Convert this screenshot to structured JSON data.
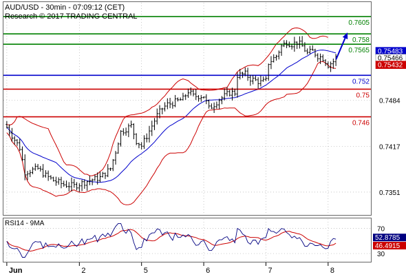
{
  "header": {
    "title": "AUD/USD - 30min - 07:09:12 (CET)",
    "subtitle": "Research © 2017 TRADING CENTRAL"
  },
  "colors": {
    "price": "#000000",
    "bollinger": "#cc0000",
    "moving_average": "#0000cc",
    "resistance": "#008000",
    "pivot": "#0000cc",
    "support": "#cc0000",
    "arrow": "#0000cc",
    "rsi": "#000080",
    "rsi_ma": "#cc0000",
    "grid": "#b0b0b0"
  },
  "chart_data": [
    {
      "type": "candlestick",
      "series_label": "AUD/USD",
      "ylim": [
        0.732,
        0.7625
      ],
      "y_ticks": [
        0.7351,
        0.7417,
        0.7484
      ],
      "x_tick_labels": [
        "Jun",
        "2",
        "5",
        "6",
        "7",
        "8"
      ],
      "x_tick_index": [
        0,
        28,
        52,
        76,
        100,
        124
      ],
      "grid": "dotted",
      "levels": [
        {
          "label": "0.7605",
          "value": 0.7605,
          "kind": "resistance"
        },
        {
          "label": "0.758",
          "value": 0.758,
          "kind": "resistance"
        },
        {
          "label": "0.7565",
          "value": 0.7565,
          "kind": "resistance"
        },
        {
          "label": "0.752",
          "value": 0.752,
          "kind": "pivot"
        },
        {
          "label": "0.75",
          "value": 0.75,
          "kind": "support"
        },
        {
          "label": "0.746",
          "value": 0.746,
          "kind": "support"
        }
      ],
      "price_tags": [
        {
          "label": "0.75483",
          "value": 0.75483
        },
        {
          "label": "0.75466",
          "value": 0.75466
        },
        {
          "label": "0.75432",
          "value": 0.75432
        }
      ],
      "arrow": {
        "from_value": 0.7543,
        "to_value": 0.758
      },
      "keypoints": [
        [
          0,
          0.7445
        ],
        [
          5,
          0.7415
        ],
        [
          7,
          0.738
        ],
        [
          12,
          0.7385
        ],
        [
          15,
          0.7375
        ],
        [
          18,
          0.7368
        ],
        [
          22,
          0.7362
        ],
        [
          26,
          0.736
        ],
        [
          32,
          0.7368
        ],
        [
          36,
          0.7372
        ],
        [
          40,
          0.7385
        ],
        [
          42,
          0.741
        ],
        [
          44,
          0.7438
        ],
        [
          48,
          0.7447
        ],
        [
          50,
          0.7425
        ],
        [
          52,
          0.7418
        ],
        [
          54,
          0.7432
        ],
        [
          58,
          0.7462
        ],
        [
          60,
          0.7472
        ],
        [
          62,
          0.7478
        ],
        [
          64,
          0.748
        ],
        [
          68,
          0.7486
        ],
        [
          70,
          0.7497
        ],
        [
          72,
          0.749
        ],
        [
          76,
          0.749
        ],
        [
          78,
          0.7472
        ],
        [
          80,
          0.7478
        ],
        [
          82,
          0.7485
        ],
        [
          86,
          0.7495
        ],
        [
          88,
          0.7495
        ],
        [
          89,
          0.752
        ],
        [
          92,
          0.7522
        ],
        [
          94,
          0.7515
        ],
        [
          98,
          0.751
        ],
        [
          100,
          0.7512
        ],
        [
          101,
          0.7538
        ],
        [
          104,
          0.7548
        ],
        [
          106,
          0.7562
        ],
        [
          108,
          0.7568
        ],
        [
          110,
          0.7565
        ],
        [
          112,
          0.7568
        ],
        [
          114,
          0.7562
        ],
        [
          116,
          0.7552
        ],
        [
          118,
          0.7555
        ],
        [
          120,
          0.7548
        ],
        [
          122,
          0.7545
        ],
        [
          124,
          0.7535
        ],
        [
          126,
          0.754
        ],
        [
          127,
          0.7546
        ]
      ]
    },
    {
      "type": "line",
      "title": "RSI14 - 9MA",
      "ylim": [
        18,
        85
      ],
      "y_ticks": [
        70,
        30
      ],
      "current_values": [
        {
          "label": "52.8785",
          "value": 52.8785,
          "series": "RSI"
        },
        {
          "label": "46.4915",
          "value": 46.4915,
          "series": "MA"
        }
      ]
    }
  ]
}
